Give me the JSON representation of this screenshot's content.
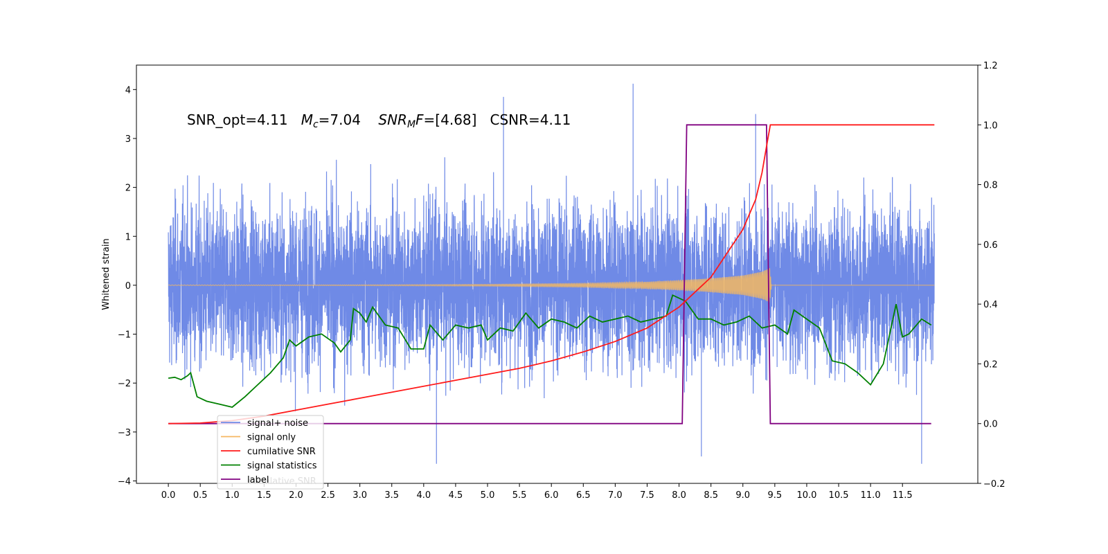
{
  "chart_data": {
    "type": "line",
    "title": "",
    "annotation": {
      "parts": [
        {
          "text": "SNR_opt=4.11   ",
          "italic": false,
          "sub": false
        },
        {
          "text": "M",
          "italic": true,
          "sub": false
        },
        {
          "text": "c",
          "italic": true,
          "sub": true
        },
        {
          "text": "=7.04    ",
          "italic": false,
          "sub": false
        },
        {
          "text": "SNR",
          "italic": true,
          "sub": false
        },
        {
          "text": "M",
          "italic": true,
          "sub": true
        },
        {
          "text": "F",
          "italic": true,
          "sub": false
        },
        {
          "text": "=[4.68]   CSNR=4.11",
          "italic": false,
          "sub": false
        }
      ]
    },
    "xlabel": "",
    "ylabel": "Whitened strain",
    "ylabel_right": "",
    "xlim": [
      -0.5,
      12.68
    ],
    "ylim": [
      -4.05,
      4.5
    ],
    "ylim_right": [
      -0.2,
      1.2
    ],
    "x_ticks": [
      "0.0",
      "0.5",
      "1.0",
      "1.5",
      "2.0",
      "2.5",
      "3.0",
      "3.5",
      "4.0",
      "4.5",
      "5.0",
      "5.5",
      "6.0",
      "6.5",
      "7.0",
      "7.5",
      "8.0",
      "8.5",
      "9.0",
      "9.5",
      "10.0",
      "10.5",
      "11.0",
      "11.5"
    ],
    "y_ticks_left": [
      "4",
      "3",
      "2",
      "1",
      "0",
      "−1",
      "−2",
      "−3",
      "−4"
    ],
    "y_ticks_right": [
      "1.2",
      "1.0",
      "0.8",
      "0.6",
      "0.4",
      "0.2",
      "0.0",
      "−0.2"
    ],
    "grid": false,
    "legend_placement": "lower-left",
    "series": [
      {
        "name": "signal+ noise",
        "axis": "left",
        "color": "#6f8ae6",
        "description": "whitened noisy time series, roughly ±2.5 with spikes",
        "range": [
          -3.7,
          4.1
        ],
        "notable_points": [
          [
            5.25,
            3.85
          ],
          [
            7.28,
            4.12
          ],
          [
            9.2,
            3.5
          ],
          [
            4.2,
            -3.65
          ],
          [
            11.8,
            -3.65
          ],
          [
            8.35,
            -3.5
          ]
        ]
      },
      {
        "name": "signal only",
        "axis": "left",
        "color": "#f5b760",
        "description": "chirp waveform, amplitude growing from ~0 to ~0.35 at x=9.4 then zero",
        "envelope": [
          [
            0.0,
            0.005
          ],
          [
            3.0,
            0.01
          ],
          [
            5.0,
            0.02
          ],
          [
            6.5,
            0.04
          ],
          [
            7.5,
            0.07
          ],
          [
            8.0,
            0.1
          ],
          [
            8.5,
            0.14
          ],
          [
            9.0,
            0.2
          ],
          [
            9.3,
            0.28
          ],
          [
            9.42,
            0.35
          ],
          [
            9.45,
            0.0
          ],
          [
            12.0,
            0.0
          ]
        ]
      },
      {
        "name": "cumilative SNR",
        "axis": "right",
        "color": "#ff1a1a",
        "points": [
          [
            0.0,
            0.0
          ],
          [
            0.5,
            0.002
          ],
          [
            1.0,
            0.01
          ],
          [
            1.5,
            0.025
          ],
          [
            2.0,
            0.045
          ],
          [
            2.5,
            0.065
          ],
          [
            3.0,
            0.085
          ],
          [
            3.5,
            0.105
          ],
          [
            4.0,
            0.125
          ],
          [
            4.5,
            0.145
          ],
          [
            5.0,
            0.165
          ],
          [
            5.5,
            0.185
          ],
          [
            6.0,
            0.21
          ],
          [
            6.5,
            0.24
          ],
          [
            7.0,
            0.275
          ],
          [
            7.5,
            0.32
          ],
          [
            8.0,
            0.39
          ],
          [
            8.5,
            0.49
          ],
          [
            9.0,
            0.65
          ],
          [
            9.2,
            0.75
          ],
          [
            9.3,
            0.84
          ],
          [
            9.38,
            0.94
          ],
          [
            9.43,
            1.0
          ],
          [
            12.0,
            1.0
          ]
        ]
      },
      {
        "name": "signal statistics",
        "axis": "right",
        "color": "#008000",
        "points": [
          [
            0.0,
            0.152
          ],
          [
            0.1,
            0.155
          ],
          [
            0.2,
            0.147
          ],
          [
            0.3,
            0.16
          ],
          [
            0.35,
            0.17
          ],
          [
            0.45,
            0.09
          ],
          [
            0.6,
            0.075
          ],
          [
            0.8,
            0.065
          ],
          [
            1.0,
            0.055
          ],
          [
            1.2,
            0.09
          ],
          [
            1.4,
            0.13
          ],
          [
            1.6,
            0.17
          ],
          [
            1.8,
            0.22
          ],
          [
            1.9,
            0.28
          ],
          [
            2.0,
            0.26
          ],
          [
            2.2,
            0.29
          ],
          [
            2.4,
            0.3
          ],
          [
            2.6,
            0.27
          ],
          [
            2.7,
            0.24
          ],
          [
            2.85,
            0.28
          ],
          [
            2.9,
            0.385
          ],
          [
            3.0,
            0.37
          ],
          [
            3.1,
            0.34
          ],
          [
            3.2,
            0.39
          ],
          [
            3.4,
            0.33
          ],
          [
            3.6,
            0.32
          ],
          [
            3.8,
            0.25
          ],
          [
            4.0,
            0.25
          ],
          [
            4.1,
            0.33
          ],
          [
            4.3,
            0.28
          ],
          [
            4.5,
            0.33
          ],
          [
            4.7,
            0.32
          ],
          [
            4.9,
            0.33
          ],
          [
            5.0,
            0.28
          ],
          [
            5.2,
            0.32
          ],
          [
            5.4,
            0.31
          ],
          [
            5.6,
            0.37
          ],
          [
            5.8,
            0.32
          ],
          [
            6.0,
            0.35
          ],
          [
            6.2,
            0.34
          ],
          [
            6.4,
            0.32
          ],
          [
            6.6,
            0.36
          ],
          [
            6.8,
            0.34
          ],
          [
            7.0,
            0.35
          ],
          [
            7.2,
            0.36
          ],
          [
            7.4,
            0.34
          ],
          [
            7.6,
            0.35
          ],
          [
            7.8,
            0.36
          ],
          [
            7.9,
            0.43
          ],
          [
            8.1,
            0.41
          ],
          [
            8.3,
            0.35
          ],
          [
            8.5,
            0.35
          ],
          [
            8.7,
            0.33
          ],
          [
            8.9,
            0.34
          ],
          [
            9.1,
            0.36
          ],
          [
            9.3,
            0.32
          ],
          [
            9.5,
            0.33
          ],
          [
            9.7,
            0.3
          ],
          [
            9.8,
            0.38
          ],
          [
            10.0,
            0.35
          ],
          [
            10.2,
            0.32
          ],
          [
            10.4,
            0.21
          ],
          [
            10.6,
            0.2
          ],
          [
            10.8,
            0.17
          ],
          [
            11.0,
            0.13
          ],
          [
            11.2,
            0.2
          ],
          [
            11.3,
            0.3
          ],
          [
            11.4,
            0.4
          ],
          [
            11.5,
            0.29
          ],
          [
            11.6,
            0.3
          ],
          [
            11.8,
            0.35
          ],
          [
            11.95,
            0.33
          ]
        ]
      },
      {
        "name": "label",
        "axis": "right",
        "color": "#800080",
        "points": [
          [
            0.0,
            0.0
          ],
          [
            8.05,
            0.0
          ],
          [
            8.12,
            1.0
          ],
          [
            9.37,
            1.0
          ],
          [
            9.43,
            0.0
          ],
          [
            11.95,
            0.0
          ]
        ]
      }
    ],
    "legend_ghost_text": "cumilative SNR"
  }
}
